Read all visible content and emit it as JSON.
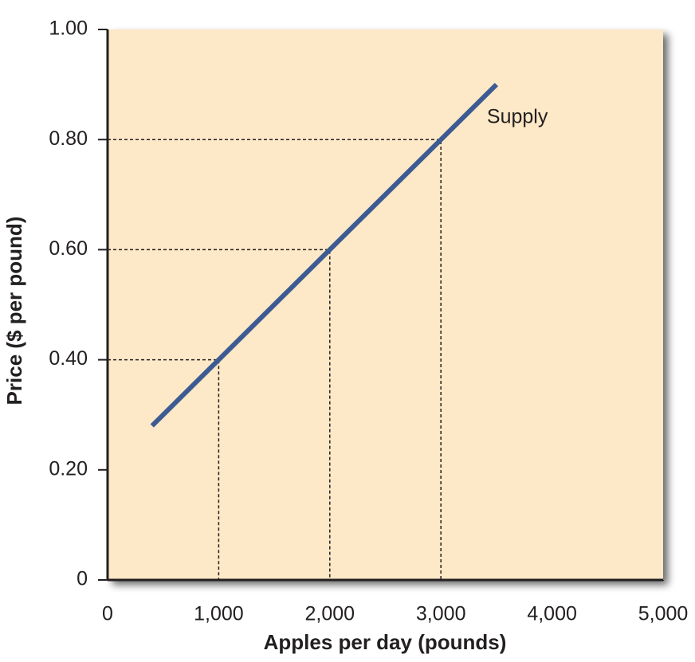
{
  "chart_data": {
    "type": "line",
    "x_label": "Apples per day (pounds)",
    "y_label": "Price ($ per pound)",
    "annotation": "Supply",
    "x": [
      400,
      1000,
      2000,
      3000,
      3500
    ],
    "series": [
      {
        "name": "Supply",
        "color": "#3d5b93",
        "values": [
          0.28,
          0.4,
          0.6,
          0.8,
          0.9
        ]
      }
    ],
    "guides_at": [
      1,
      2,
      3
    ],
    "xlim": [
      0,
      5000
    ],
    "xticks": [
      0,
      {
        "value": 1000,
        "label": "1,000"
      },
      {
        "value": 2000,
        "label": "2,000"
      },
      {
        "value": 3000,
        "label": "3,000"
      },
      {
        "value": 4000,
        "label": "4,000"
      },
      {
        "value": 5000,
        "label": "5,000"
      }
    ],
    "ylim": [
      0,
      1
    ],
    "yticks": [
      0,
      {
        "value": 0.2,
        "label": "0.20"
      },
      {
        "value": 0.4,
        "label": "0.40"
      },
      {
        "value": 0.6,
        "label": "0.60"
      },
      {
        "value": 0.8,
        "label": "0.80"
      },
      {
        "value": 1,
        "label": "1.00"
      }
    ],
    "background": "#fde8c7"
  }
}
